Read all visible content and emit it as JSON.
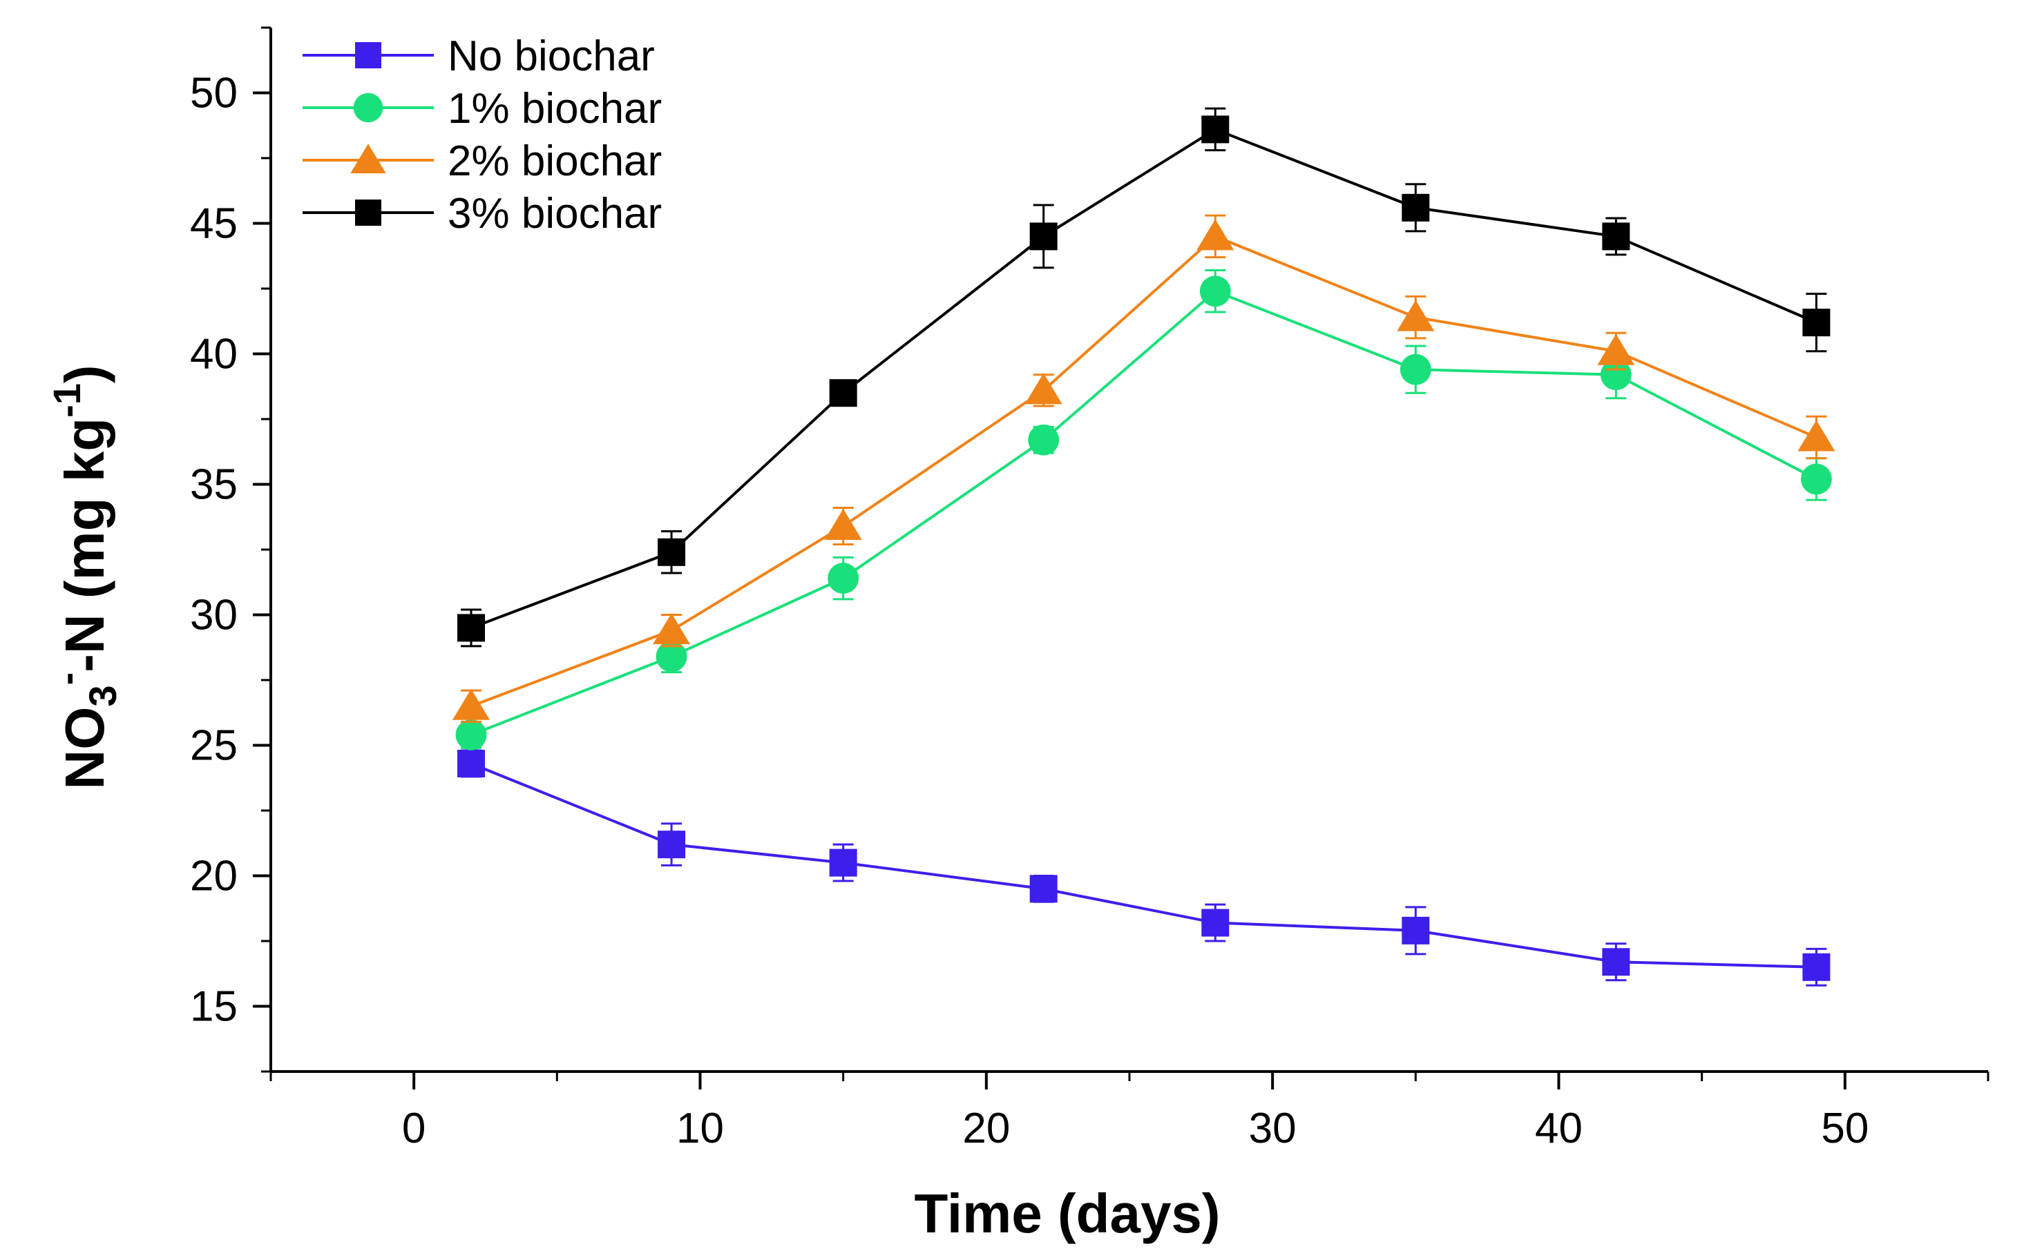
{
  "chart_data": {
    "type": "line",
    "title": "",
    "xlabel": "Time (days)",
    "ylabel": {
      "base": "NO",
      "sub": "3",
      "sup_minus": "-",
      "mid": "-N (mg kg",
      "sup_exp": "-1",
      "end": ")"
    },
    "xlim": [
      -5,
      55
    ],
    "ylim": [
      12.5,
      52.5
    ],
    "xticks": [
      0,
      10,
      20,
      30,
      40,
      50
    ],
    "xtick_labels": [
      "0",
      "10",
      "20",
      "30",
      "40",
      "50"
    ],
    "yticks": [
      15,
      20,
      25,
      30,
      35,
      40,
      45,
      50
    ],
    "ytick_labels": [
      "15",
      "20",
      "25",
      "30",
      "35",
      "40",
      "45",
      "50"
    ],
    "grid": false,
    "legend_position": "top-left",
    "x": [
      2,
      9,
      15,
      22,
      28,
      35,
      42,
      49
    ],
    "series": [
      {
        "name": "No biochar",
        "color": "#3d1fec",
        "line_color": "#3d1fec",
        "marker": "square",
        "values": [
          24.3,
          21.2,
          20.5,
          19.5,
          18.2,
          17.9,
          16.7,
          16.5
        ],
        "errors": [
          0.5,
          0.8,
          0.7,
          0.5,
          0.7,
          0.9,
          0.7,
          0.7
        ]
      },
      {
        "name": "1% biochar",
        "color": "#19e07a",
        "line_color": "#19e07a",
        "marker": "circle",
        "values": [
          25.4,
          28.4,
          31.4,
          36.7,
          42.4,
          39.4,
          39.2,
          35.2
        ],
        "errors": [
          0.5,
          0.6,
          0.8,
          0.5,
          0.8,
          0.9,
          0.9,
          0.8
        ]
      },
      {
        "name": "2% biochar",
        "color": "#f08317",
        "line_color": "#f08317",
        "marker": "triangle",
        "values": [
          26.5,
          29.4,
          33.4,
          38.6,
          44.5,
          41.4,
          40.1,
          36.8
        ],
        "errors": [
          0.6,
          0.6,
          0.7,
          0.6,
          0.8,
          0.8,
          0.7,
          0.8
        ]
      },
      {
        "name": "3% biochar",
        "color": "#000000",
        "line_color": "#000000",
        "marker": "square",
        "values": [
          29.5,
          32.4,
          38.5,
          44.5,
          48.6,
          45.6,
          44.5,
          41.2
        ],
        "errors": [
          0.7,
          0.8,
          0.4,
          1.2,
          0.8,
          0.9,
          0.7,
          1.1
        ]
      }
    ]
  }
}
